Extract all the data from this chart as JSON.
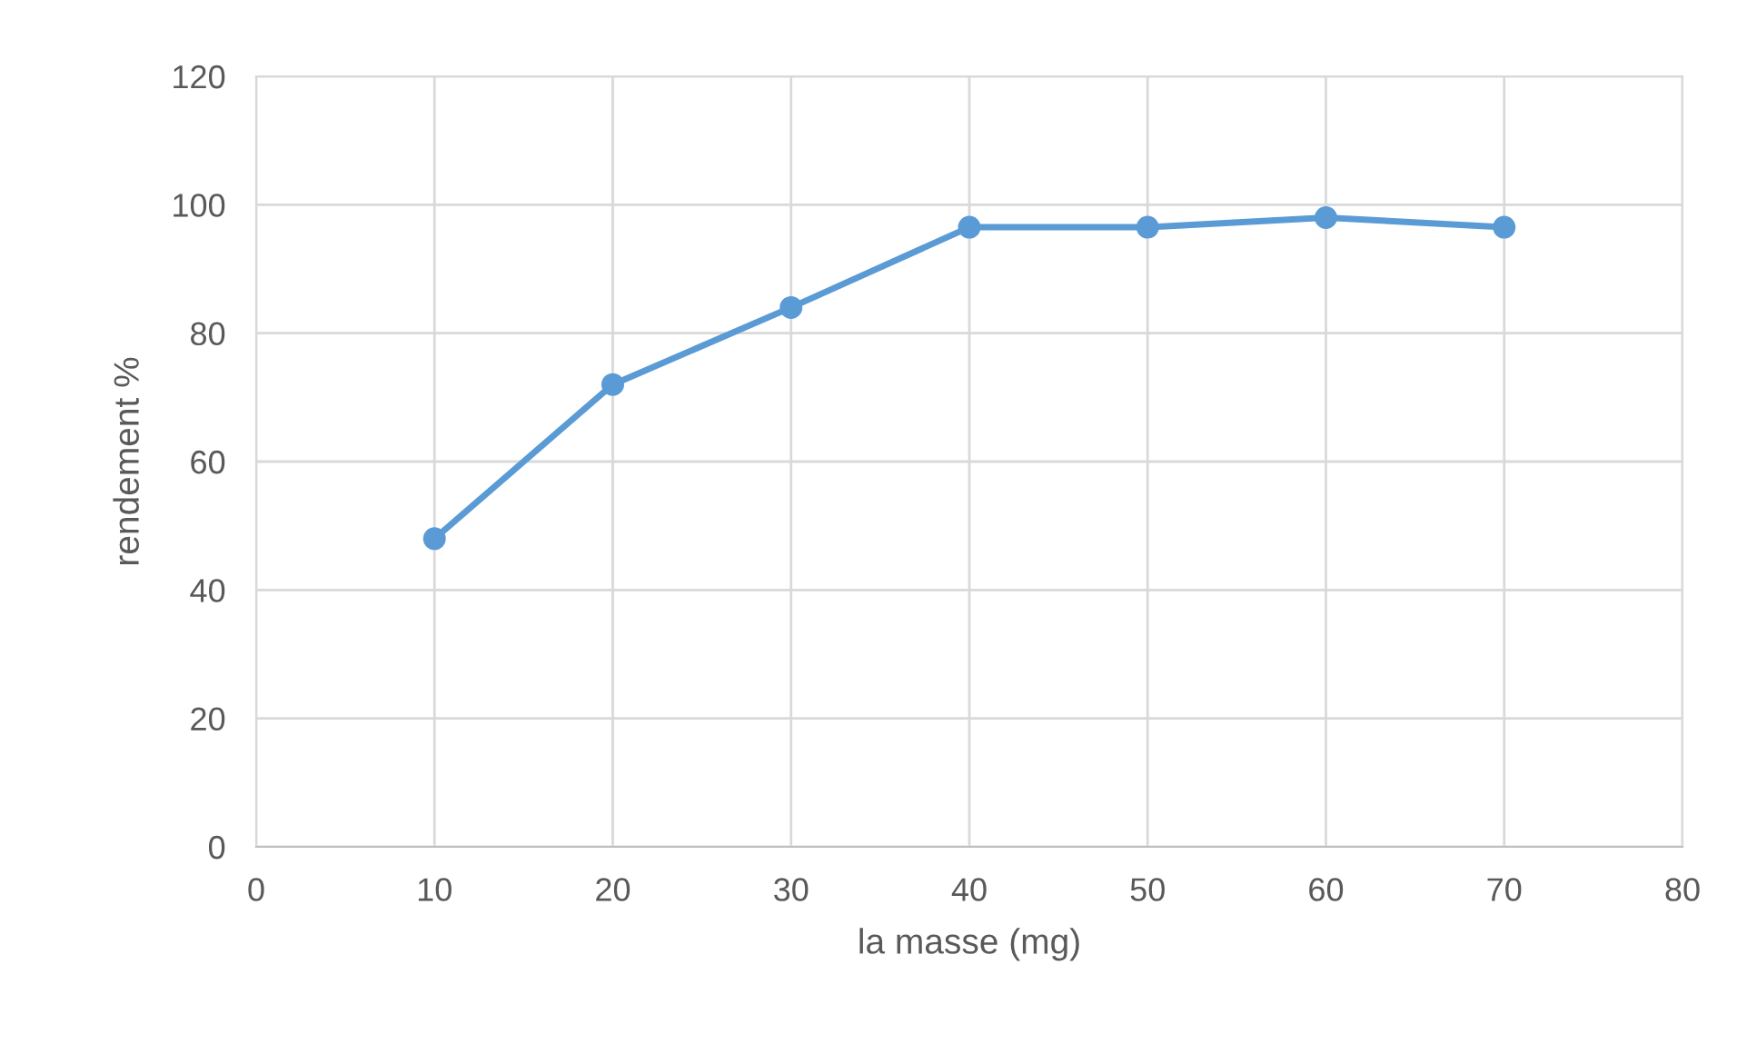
{
  "chart_data": {
    "type": "line",
    "xlabel": "la masse (mg)",
    "ylabel": "rendement %",
    "x": [
      10,
      20,
      30,
      40,
      50,
      60,
      70
    ],
    "series": [
      {
        "color": "#5b9bd5",
        "values": [
          48,
          72,
          84,
          96.5,
          96.5,
          98,
          96.5
        ]
      }
    ],
    "xlim": [
      0,
      80
    ],
    "xticks": [
      0,
      10,
      20,
      30,
      40,
      50,
      60,
      70,
      80
    ],
    "ylim": [
      0,
      120
    ],
    "yticks": [
      0,
      20,
      40,
      60,
      80,
      100,
      120
    ],
    "grid": true,
    "marker": "circle",
    "line_style": "solid"
  }
}
